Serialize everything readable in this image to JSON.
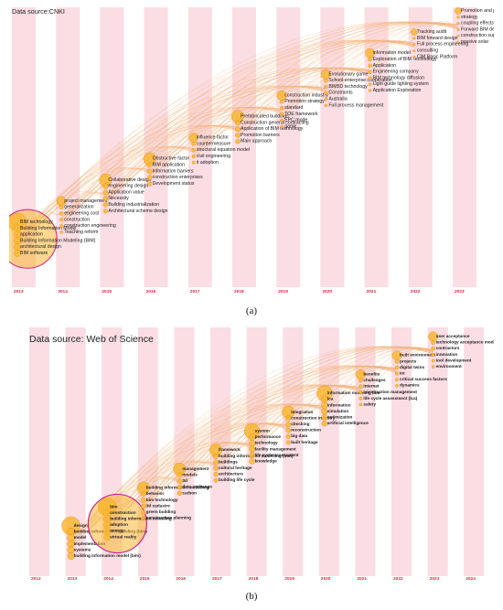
{
  "figure": {
    "caption_a": "(a)",
    "caption_b": "(b)"
  },
  "chart_data": [
    {
      "type": "timezone",
      "title": "Data source:CNKI",
      "years": [
        "2013",
        "2014",
        "2015",
        "2016",
        "2017",
        "2018",
        "2019",
        "2020",
        "2021",
        "2022",
        "2023"
      ],
      "colors": {
        "band": "#fbdde4",
        "node": "#f7b733",
        "node_edge": "#e8891a",
        "link": "#f3b27a",
        "highlight": "#d63384",
        "year": "#d9263b"
      },
      "clusters": [
        {
          "year": "2013",
          "terms": [
            "BIM technology",
            "Building Information Model",
            "application",
            "Building Information Modeling (BIM)",
            "architectural design",
            "BIM software"
          ],
          "node_size": 5,
          "highlight": true
        },
        {
          "year": "2014",
          "terms": [
            "project management",
            "generalization",
            "engineering cost",
            "construction",
            "construction engineering",
            "Teaching reform"
          ],
          "node_size": 2
        },
        {
          "year": "2015",
          "terms": [
            "Collaborative design",
            "engineering design",
            "Application value",
            "Necessity",
            "Building industrialization",
            "Architectural scheme design"
          ],
          "node_size": 3
        },
        {
          "year": "2016",
          "terms": [
            "Obstructive factor",
            "BIM application",
            "Information barriers",
            "construction enterprises",
            "Development status"
          ],
          "node_size": 3
        },
        {
          "year": "2017",
          "terms": [
            "influence factor",
            "countermeasure",
            "structural equation model",
            "civil engineering",
            "it adoption"
          ],
          "node_size": 2
        },
        {
          "year": "2018",
          "terms": [
            "Prefabricated buildings",
            "Construction general contracting",
            "Application of BIM technology",
            "Promotion barriers",
            "Main approach"
          ],
          "node_size": 3
        },
        {
          "year": "2019",
          "terms": [
            "construction industry",
            "Promotion strategy",
            "standard",
            "TOE framework",
            "EPC mode",
            "game"
          ],
          "node_size": 2
        },
        {
          "year": "2020",
          "terms": [
            "Evolutionary game",
            "School-enterprise cooperation",
            "BIM5D technology",
            "Constraints",
            "Australia",
            "Full process management"
          ],
          "node_size": 2
        },
        {
          "year": "2021",
          "terms": [
            "information model",
            "Exploration of BIM Technology",
            "Application",
            "Engineering company",
            "BIM technology diffusion",
            "Light guide lighting system",
            "Application Exploration"
          ],
          "node_size": 2
        },
        {
          "year": "2022",
          "terms": [
            "Tracking audit",
            "BIM forward design",
            "Full process engineering",
            "consulting",
            "CIM Basic Platform"
          ],
          "node_size": 1
        },
        {
          "year": "2023",
          "terms": [
            "Promotion and popularization",
            "strategy",
            "coupling effects",
            "Forward BIM design",
            "construction supervision",
            "passive solar"
          ],
          "node_size": 1
        }
      ]
    },
    {
      "type": "timezone",
      "title": "Data source: Web of Science",
      "years": [
        "2012",
        "2013",
        "2014",
        "2015",
        "2016",
        "2017",
        "2018",
        "2019",
        "2020",
        "2021",
        "2022",
        "2023",
        "2024"
      ],
      "colors": {
        "band": "#fbdde4",
        "node": "#f7b733",
        "node_edge": "#e8891a",
        "link": "#f3b27a",
        "highlight": "#c2178f",
        "year": "#d9263b"
      },
      "clusters": [
        {
          "year": "2013",
          "terms": [
            "design",
            "building information modeling (bim)",
            "model",
            "implementation",
            "systems",
            "building information model (bim)"
          ],
          "node_size": 5
        },
        {
          "year": "2014",
          "terms": [
            "bim",
            "construction",
            "building information modeling",
            "adoption",
            "energy",
            "virtual reality"
          ],
          "node_size": 5,
          "highlight": true
        },
        {
          "year": "2015",
          "terms": [
            "building information modelling",
            "behavior",
            "bim technology",
            "3d cadastre",
            "green building",
            "construction planning"
          ],
          "node_size": 3
        },
        {
          "year": "2016",
          "terms": [
            "management",
            "models",
            "3d",
            "data exchange",
            "carbon"
          ],
          "node_size": 3
        },
        {
          "year": "2017",
          "terms": [
            "framework",
            "building information modelling (bim)",
            "buildings",
            "cultural heritage",
            "architecture",
            "building life cycle"
          ],
          "node_size": 3
        },
        {
          "year": "2018",
          "terms": [
            "system",
            "performance",
            "technology",
            "facility management",
            "life cycle assessment",
            "knowledge"
          ],
          "node_size": 4
        },
        {
          "year": "2019",
          "terms": [
            "integration",
            "construction industry",
            "checking",
            "reconstruction",
            "big data",
            "built heritage"
          ],
          "node_size": 3
        },
        {
          "year": "2020",
          "terms": [
            "information modeling bim",
            "lca",
            "information",
            "simulation",
            "optimization",
            "artificial intelligence"
          ],
          "node_size": 4
        },
        {
          "year": "2021",
          "terms": [
            "benefits",
            "challenges",
            "internet",
            "construction management",
            "life cycle assessment (lca)",
            "safety"
          ],
          "node_size": 2
        },
        {
          "year": "2022",
          "terms": [
            "built environment",
            "projects",
            "digital twins",
            "iot",
            "critical success factors",
            "dynamics"
          ],
          "node_size": 2
        },
        {
          "year": "2023",
          "terms": [
            "user acceptance",
            "technology acceptance model",
            "contractors",
            "innovation",
            "tool development",
            "environment"
          ],
          "node_size": 2
        }
      ]
    }
  ]
}
